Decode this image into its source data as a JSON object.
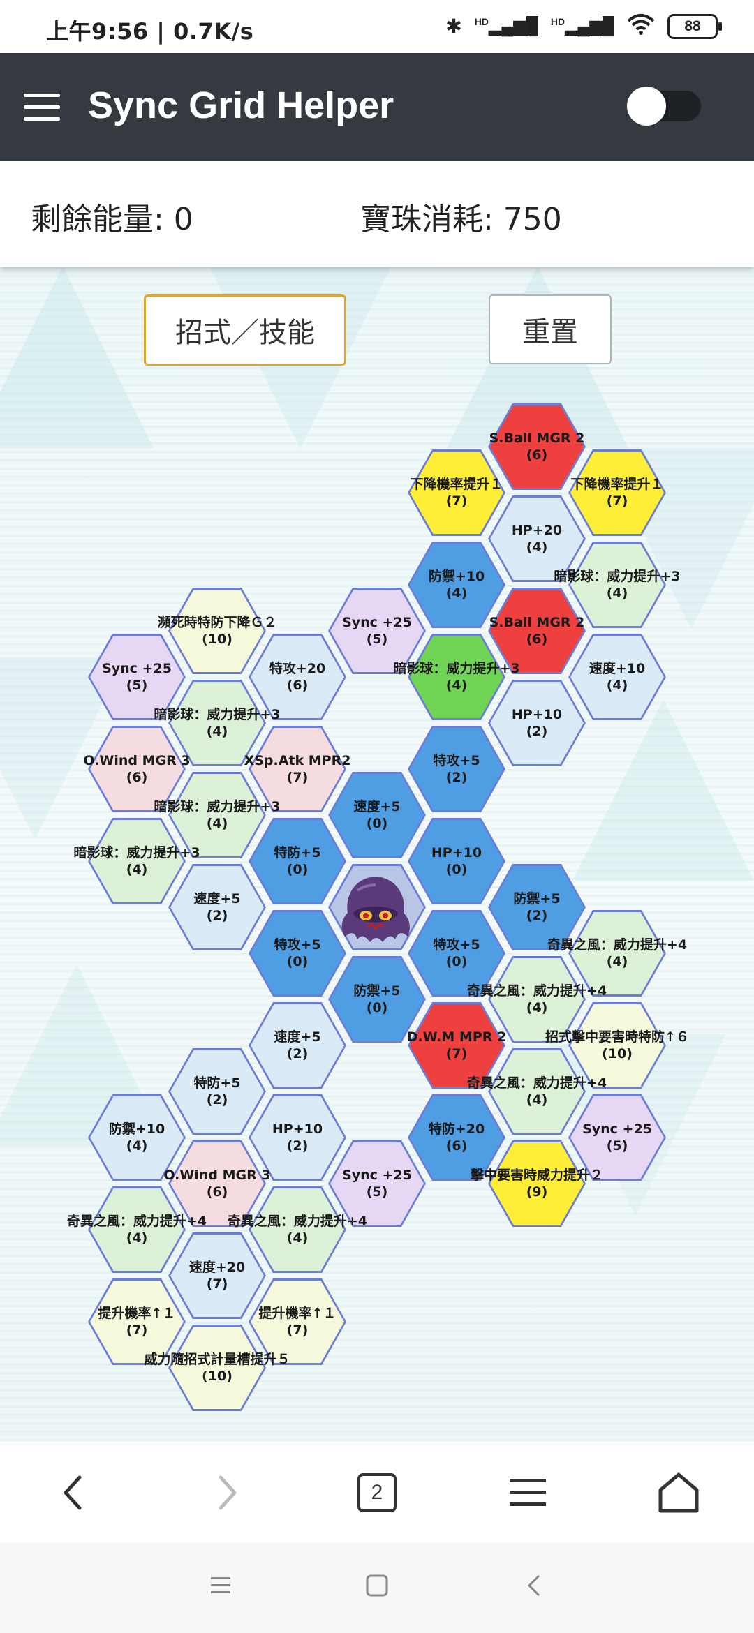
{
  "status_bar": {
    "time": "上午9:56 | 0.7K/s",
    "bluetooth": "✱",
    "signal1": "HD",
    "signal2": "HD",
    "battery": "88"
  },
  "app_bar": {
    "title": "Sync Grid Helper"
  },
  "info": {
    "energy_label": "剩餘能量: 0",
    "orb_label": "寶珠消耗: 750"
  },
  "buttons": {
    "moves": "招式／技能",
    "reset": "重置"
  },
  "colors": {
    "app_bar": "#343a40",
    "blue": "#4f9ee3",
    "red": "#ef4040",
    "yellow": "#ffee38",
    "green": "#70d454",
    "hex_border": "#6b7dd6",
    "moves_button_border": "#e0a530"
  },
  "tiles": [
    {
      "id": "t1",
      "name": "S.Ball MGR 2",
      "cost": "(6)",
      "color": "red"
    },
    {
      "id": "t2",
      "name": "下降機率提升１",
      "cost": "(7)",
      "color": "yellow"
    },
    {
      "id": "t3",
      "name": "下降機率提升１",
      "cost": "(7)",
      "color": "yellow"
    },
    {
      "id": "t4",
      "name": "HP+20",
      "cost": "(4)",
      "color": "lightblue"
    },
    {
      "id": "t5",
      "name": "防禦+10",
      "cost": "(4)",
      "color": "blue"
    },
    {
      "id": "t6",
      "name": "暗影球：威力提升+3",
      "cost": "(4)",
      "color": "lightgreen"
    },
    {
      "id": "t7",
      "name": "Sync +25",
      "cost": "(5)",
      "color": "lightpurple"
    },
    {
      "id": "t8",
      "name": "S.Ball MGR 2",
      "cost": "(6)",
      "color": "red"
    },
    {
      "id": "t9",
      "name": "瀕死時特防下降Ｇ２",
      "cost": "(10)",
      "color": "lightyellow"
    },
    {
      "id": "t10",
      "name": "Sync +25",
      "cost": "(5)",
      "color": "lightpurple"
    },
    {
      "id": "t11",
      "name": "特攻+20",
      "cost": "(6)",
      "color": "lightblue"
    },
    {
      "id": "t12",
      "name": "暗影球：威力提升+3",
      "cost": "(4)",
      "color": "green"
    },
    {
      "id": "t13",
      "name": "速度+10",
      "cost": "(4)",
      "color": "lightblue"
    },
    {
      "id": "t14",
      "name": "HP+10",
      "cost": "(2)",
      "color": "lightblue"
    },
    {
      "id": "t15",
      "name": "暗影球：威力提升+3",
      "cost": "(4)",
      "color": "lightgreen"
    },
    {
      "id": "t16",
      "name": "O.Wind MGR 3",
      "cost": "(6)",
      "color": "lightpink"
    },
    {
      "id": "t17",
      "name": "XSp.Atk MPR2",
      "cost": "(7)",
      "color": "lightpink"
    },
    {
      "id": "t18",
      "name": "特攻+5",
      "cost": "(2)",
      "color": "blue"
    },
    {
      "id": "t19",
      "name": "速度+5",
      "cost": "(0)",
      "color": "blue"
    },
    {
      "id": "t20",
      "name": "暗影球：威力提升+3",
      "cost": "(4)",
      "color": "lightgreen"
    },
    {
      "id": "t21",
      "name": "暗影球：威力提升+3",
      "cost": "(4)",
      "color": "lightgreen"
    },
    {
      "id": "t22",
      "name": "特防+5",
      "cost": "(0)",
      "color": "blue"
    },
    {
      "id": "t23",
      "name": "HP+10",
      "cost": "(0)",
      "color": "blue"
    },
    {
      "id": "t24",
      "name": "速度+5",
      "cost": "(2)",
      "color": "lightblue"
    },
    {
      "id": "t25",
      "name": "防禦+5",
      "cost": "(2)",
      "color": "blue"
    },
    {
      "id": "t26",
      "name": "特攻+5",
      "cost": "(0)",
      "color": "blue"
    },
    {
      "id": "t27",
      "name": "特攻+5",
      "cost": "(0)",
      "color": "blue"
    },
    {
      "id": "t28",
      "name": "奇異之風：威力提升+4",
      "cost": "(4)",
      "color": "lightgreen"
    },
    {
      "id": "t29",
      "name": "防禦+5",
      "cost": "(0)",
      "color": "blue"
    },
    {
      "id": "t30",
      "name": "奇異之風：威力提升+4",
      "cost": "(4)",
      "color": "lightgreen"
    },
    {
      "id": "t31",
      "name": "速度+5",
      "cost": "(2)",
      "color": "lightblue"
    },
    {
      "id": "t32",
      "name": "D.W.M MPR 2",
      "cost": "(7)",
      "color": "red"
    },
    {
      "id": "t33",
      "name": "招式擊中要害時特防↑６",
      "cost": "(10)",
      "color": "lightyellow"
    },
    {
      "id": "t34",
      "name": "特防+5",
      "cost": "(2)",
      "color": "lightblue"
    },
    {
      "id": "t35",
      "name": "奇異之風：威力提升+4",
      "cost": "(4)",
      "color": "lightgreen"
    },
    {
      "id": "t36",
      "name": "防禦+10",
      "cost": "(4)",
      "color": "lightblue"
    },
    {
      "id": "t37",
      "name": "HP+10",
      "cost": "(2)",
      "color": "lightblue"
    },
    {
      "id": "t38",
      "name": "特防+20",
      "cost": "(6)",
      "color": "blue"
    },
    {
      "id": "t39",
      "name": "Sync +25",
      "cost": "(5)",
      "color": "lightpurple"
    },
    {
      "id": "t40",
      "name": "O.Wind MGR 3",
      "cost": "(6)",
      "color": "lightpink"
    },
    {
      "id": "t41",
      "name": "Sync +25",
      "cost": "(5)",
      "color": "lightpurple"
    },
    {
      "id": "t42",
      "name": "擊中要害時威力提升２",
      "cost": "(9)",
      "color": "yellow"
    },
    {
      "id": "t43",
      "name": "奇異之風：威力提升+4",
      "cost": "(4)",
      "color": "lightgreen"
    },
    {
      "id": "t44",
      "name": "奇異之風：威力提升+4",
      "cost": "(4)",
      "color": "lightgreen"
    },
    {
      "id": "t45",
      "name": "速度+20",
      "cost": "(7)",
      "color": "lightblue"
    },
    {
      "id": "t46",
      "name": "提升機率↑１",
      "cost": "(7)",
      "color": "lightyellow"
    },
    {
      "id": "t47",
      "name": "提升機率↑１",
      "cost": "(7)",
      "color": "lightyellow"
    },
    {
      "id": "t48",
      "name": "威力隨招式計量槽提升５",
      "cost": "(10)",
      "color": "lightyellow"
    }
  ],
  "browser": {
    "tab_count": "2"
  }
}
